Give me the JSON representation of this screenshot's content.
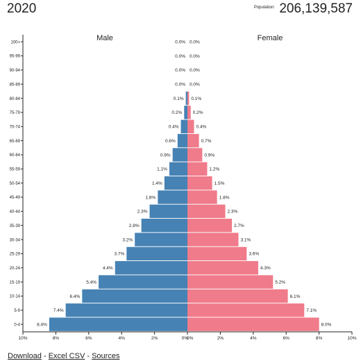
{
  "header": {
    "year": "2020",
    "population_label": "Population:",
    "population_value": "206,139,587"
  },
  "colors": {
    "male": "#4682b4",
    "female": "#f07b8a"
  },
  "footer": {
    "download": "Download",
    "sep1": "-",
    "excel": "Excel CSV",
    "sep2": "-",
    "sources": "Sources"
  },
  "chart_data": {
    "type": "bar",
    "orientation": "horizontal-pyramid",
    "categories": [
      "100+",
      "95-99",
      "90-94",
      "85-89",
      "80-84",
      "75-79",
      "70-74",
      "65-69",
      "60-64",
      "55-59",
      "50-54",
      "45-49",
      "40-44",
      "35-39",
      "30-34",
      "25-29",
      "20-24",
      "15-19",
      "10-14",
      "5-9",
      "0-4"
    ],
    "series": [
      {
        "name": "Male",
        "values": [
          0.0,
          0.0,
          0.0,
          0.0,
          0.1,
          0.2,
          0.4,
          0.6,
          0.9,
          1.1,
          1.4,
          1.8,
          2.3,
          2.8,
          3.2,
          3.7,
          4.4,
          5.4,
          6.4,
          7.4,
          8.4
        ],
        "labels": [
          "0.0%",
          "0.0%",
          "0.0%",
          "0.0%",
          "0.1%",
          "0.2%",
          "0.4%",
          "0.6%",
          "0.9%",
          "1.1%",
          "1.4%",
          "1.8%",
          "2.3%",
          "2.8%",
          "3.2%",
          "3.7%",
          "4.4%",
          "5.4%",
          "6.4%",
          "7.4%",
          "8.4%"
        ]
      },
      {
        "name": "Female",
        "values": [
          0.0,
          0.0,
          0.0,
          0.0,
          0.1,
          0.2,
          0.4,
          0.7,
          0.9,
          1.2,
          1.5,
          1.8,
          2.3,
          2.7,
          3.1,
          3.6,
          4.3,
          5.2,
          6.1,
          7.1,
          8.0
        ],
        "labels": [
          "0.0%",
          "0.0%",
          "0.0%",
          "0.0%",
          "0.1%",
          "0.2%",
          "0.4%",
          "0.7%",
          "0.9%",
          "1.2%",
          "1.5%",
          "1.8%",
          "2.3%",
          "2.7%",
          "3.1%",
          "3.6%",
          "4.3%",
          "5.2%",
          "6.1%",
          "7.1%",
          "8.0%"
        ]
      }
    ],
    "xlim": [
      0,
      10
    ],
    "x_ticks": [
      "10%",
      "8%",
      "6%",
      "4%",
      "2%",
      "0%",
      "0%",
      "2%",
      "4%",
      "6%",
      "8%",
      "10%"
    ],
    "xlabel": "",
    "ylabel": "",
    "grid": false,
    "legend": "none"
  }
}
